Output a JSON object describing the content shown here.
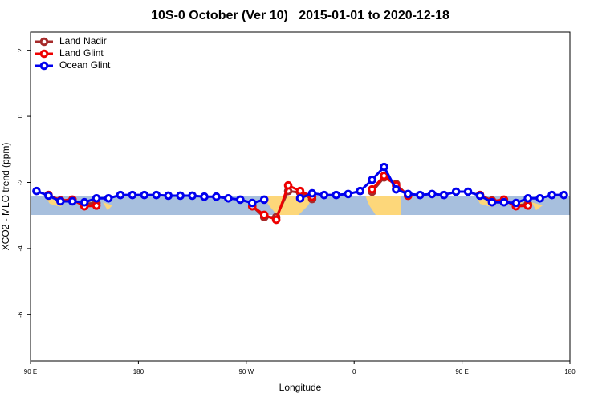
{
  "chart_data": {
    "type": "line",
    "title": "10S-0 October (Ver 10)   2015-01-01 to 2020-12-18",
    "x_label": "Longitude",
    "y_label": "XCO2 - MLO trend (ppm)",
    "x": [
      95,
      105,
      115,
      125,
      135,
      145,
      155,
      165,
      175,
      185,
      195,
      205,
      215,
      225,
      235,
      245,
      255,
      265,
      275,
      285,
      295,
      305,
      315,
      325,
      335,
      345,
      355,
      365,
      375,
      385,
      395,
      405,
      415,
      425,
      435,
      445,
      455,
      465,
      475,
      485,
      495,
      505,
      515,
      525,
      535
    ],
    "xlim": [
      90,
      540
    ],
    "xticks": [
      {
        "value": 90,
        "label": "90 E"
      },
      180,
      {
        "value": 270,
        "label": "90 W"
      },
      {
        "value": 360,
        "label": "0"
      },
      {
        "value": 450,
        "label": "90 E"
      },
      {
        "value": 540,
        "label": "180"
      }
    ],
    "ylim": [
      -7.4,
      2.55
    ],
    "yticks": [
      -6,
      -4,
      -2,
      0,
      2
    ],
    "legend": "top-left",
    "series": [
      {
        "name": "Land Nadir",
        "color": "#a52a2a",
        "values": [
          null,
          -2.38,
          -2.55,
          -2.55,
          -2.65,
          -2.62,
          null,
          null,
          null,
          null,
          null,
          null,
          null,
          null,
          null,
          null,
          null,
          null,
          -2.72,
          -3.05,
          -3.05,
          -2.26,
          -2.31,
          -2.5,
          null,
          null,
          null,
          null,
          -2.28,
          -1.85,
          -2.05,
          -2.4,
          null,
          null,
          null,
          null,
          null,
          -2.38,
          -2.55,
          -2.55,
          -2.7,
          -2.65,
          null,
          null,
          null
        ]
      },
      {
        "name": "Land Glint",
        "color": "#ee0000",
        "values": [
          null,
          -2.38,
          -2.55,
          -2.52,
          -2.72,
          -2.7,
          null,
          null,
          null,
          null,
          null,
          null,
          null,
          null,
          null,
          null,
          null,
          null,
          -2.72,
          -2.98,
          -3.13,
          -2.09,
          -2.26,
          -2.43,
          null,
          null,
          null,
          null,
          -2.21,
          -1.8,
          -2.09,
          -2.4,
          null,
          null,
          null,
          null,
          null,
          -2.38,
          -2.57,
          -2.52,
          -2.72,
          -2.7,
          null,
          null,
          null
        ]
      },
      {
        "name": "Ocean Glint",
        "color": "#0000ee",
        "values": [
          -2.26,
          -2.4,
          -2.57,
          -2.57,
          -2.6,
          -2.48,
          -2.48,
          -2.38,
          -2.38,
          -2.38,
          -2.38,
          -2.4,
          -2.4,
          -2.4,
          -2.43,
          -2.43,
          -2.48,
          -2.52,
          -2.62,
          -2.52,
          null,
          null,
          -2.48,
          -2.33,
          -2.38,
          -2.38,
          -2.35,
          -2.26,
          -1.92,
          -1.53,
          -2.21,
          -2.35,
          -2.38,
          -2.35,
          -2.38,
          -2.28,
          -2.28,
          -2.4,
          -2.6,
          -2.6,
          -2.62,
          -2.48,
          -2.48,
          -2.38,
          -2.38
        ]
      }
    ]
  }
}
